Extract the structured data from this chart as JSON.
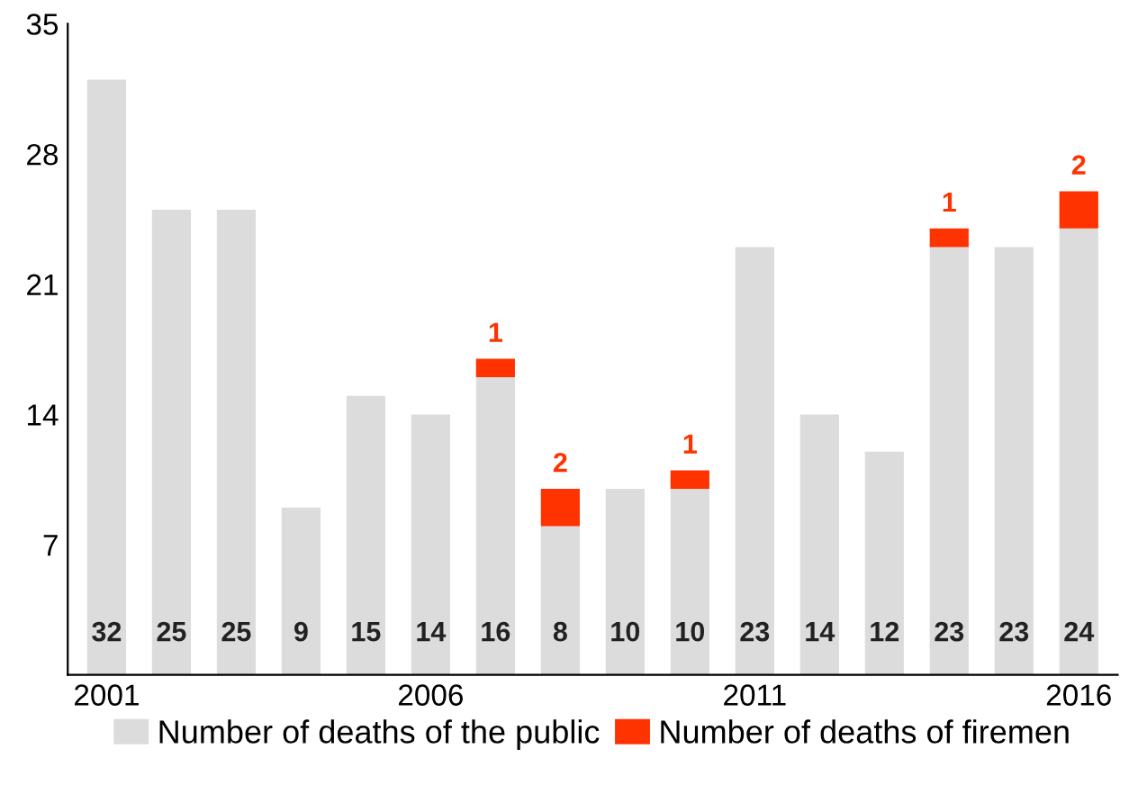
{
  "chart_data": {
    "type": "bar",
    "stacked": true,
    "categories": [
      "2001",
      null,
      null,
      null,
      null,
      "2006",
      null,
      null,
      null,
      null,
      "2011",
      null,
      null,
      null,
      null,
      "2016"
    ],
    "series": [
      {
        "name": "Number of deaths of the public",
        "color": "#dcdcdc",
        "values": [
          32,
          25,
          25,
          9,
          15,
          14,
          16,
          8,
          10,
          10,
          23,
          14,
          12,
          23,
          23,
          24
        ]
      },
      {
        "name": "Number of deaths of firemen",
        "color": "#ff3300",
        "values": [
          null,
          null,
          null,
          null,
          null,
          null,
          1,
          2,
          null,
          1,
          null,
          null,
          null,
          1,
          null,
          2
        ]
      }
    ],
    "ylim": [
      0,
      35
    ],
    "yticks": [
      7,
      14,
      21,
      28,
      35
    ],
    "grid": false,
    "legend": "bottom",
    "data_labels": true
  }
}
